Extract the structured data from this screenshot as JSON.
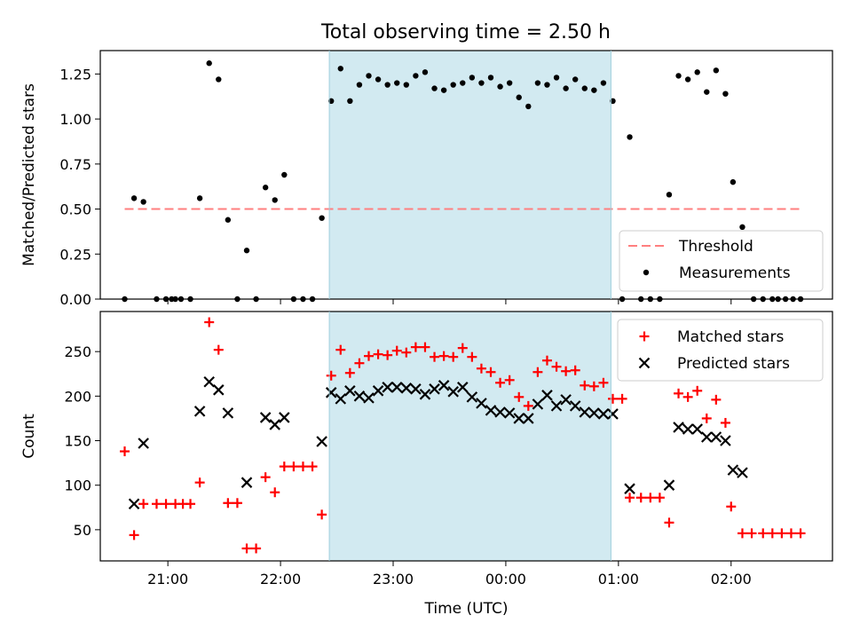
{
  "title": "Total observing time = 2.50 h",
  "chart_data": [
    {
      "type": "scatter",
      "panel": "top",
      "ylabel": "Matched/Predicted stars",
      "xlabel": "",
      "xlim": [
        "20:24",
        "02:54"
      ],
      "ylim": [
        0,
        1.38
      ],
      "yticks": [
        "0.00",
        "0.25",
        "0.50",
        "0.75",
        "1.00",
        "1.25"
      ],
      "threshold": {
        "name": "Threshold",
        "value": 0.5,
        "x_start": "20:37",
        "x_end": "02:37",
        "color": "#ff7f7f",
        "style": "dashed"
      },
      "shaded_region": {
        "x_start": "22:26",
        "x_end": "00:56",
        "color": "#add8e6"
      },
      "legend": {
        "placement": "lower right",
        "entries": [
          "Threshold",
          "Measurements"
        ]
      },
      "series": [
        {
          "name": "Measurements",
          "marker": "dot",
          "color": "#000000",
          "points": [
            [
              "20:37",
              0.0
            ],
            [
              "20:42",
              0.56
            ],
            [
              "20:47",
              0.54
            ],
            [
              "20:54",
              0.0
            ],
            [
              "20:59",
              0.0
            ],
            [
              "21:02",
              0.0
            ],
            [
              "21:04",
              0.0
            ],
            [
              "21:07",
              0.0
            ],
            [
              "21:12",
              0.0
            ],
            [
              "21:17",
              0.56
            ],
            [
              "21:22",
              1.31
            ],
            [
              "21:27",
              1.22
            ],
            [
              "21:32",
              0.44
            ],
            [
              "21:37",
              0.0
            ],
            [
              "21:42",
              0.27
            ],
            [
              "21:47",
              0.0
            ],
            [
              "21:52",
              0.62
            ],
            [
              "21:57",
              0.55
            ],
            [
              "22:02",
              0.69
            ],
            [
              "22:07",
              0.0
            ],
            [
              "22:12",
              0.0
            ],
            [
              "22:17",
              0.0
            ],
            [
              "22:22",
              0.45
            ],
            [
              "22:27",
              1.1
            ],
            [
              "22:32",
              1.28
            ],
            [
              "22:37",
              1.1
            ],
            [
              "22:42",
              1.19
            ],
            [
              "22:47",
              1.24
            ],
            [
              "22:52",
              1.22
            ],
            [
              "22:57",
              1.19
            ],
            [
              "23:02",
              1.2
            ],
            [
              "23:07",
              1.19
            ],
            [
              "23:12",
              1.24
            ],
            [
              "23:17",
              1.26
            ],
            [
              "23:22",
              1.17
            ],
            [
              "23:27",
              1.16
            ],
            [
              "23:32",
              1.19
            ],
            [
              "23:37",
              1.2
            ],
            [
              "23:42",
              1.23
            ],
            [
              "23:47",
              1.2
            ],
            [
              "23:52",
              1.23
            ],
            [
              "23:57",
              1.18
            ],
            [
              "00:02",
              1.2
            ],
            [
              "00:07",
              1.12
            ],
            [
              "00:12",
              1.07
            ],
            [
              "00:17",
              1.2
            ],
            [
              "00:22",
              1.19
            ],
            [
              "00:27",
              1.23
            ],
            [
              "00:32",
              1.17
            ],
            [
              "00:37",
              1.22
            ],
            [
              "00:42",
              1.17
            ],
            [
              "00:47",
              1.16
            ],
            [
              "00:52",
              1.2
            ],
            [
              "00:57",
              1.1
            ],
            [
              "01:02",
              0.0
            ],
            [
              "01:06",
              0.9
            ],
            [
              "01:12",
              0.0
            ],
            [
              "01:17",
              0.0
            ],
            [
              "01:22",
              0.0
            ],
            [
              "01:27",
              0.58
            ],
            [
              "01:32",
              1.24
            ],
            [
              "01:37",
              1.22
            ],
            [
              "01:42",
              1.26
            ],
            [
              "01:47",
              1.15
            ],
            [
              "01:52",
              1.27
            ],
            [
              "01:57",
              1.14
            ],
            [
              "02:01",
              0.65
            ],
            [
              "02:06",
              0.4
            ],
            [
              "02:12",
              0.0
            ],
            [
              "02:17",
              0.0
            ],
            [
              "02:22",
              0.0
            ],
            [
              "02:25",
              0.0
            ],
            [
              "02:29",
              0.0
            ],
            [
              "02:33",
              0.0
            ],
            [
              "02:37",
              0.0
            ]
          ]
        }
      ]
    },
    {
      "type": "scatter",
      "panel": "bottom",
      "ylabel": "Count",
      "xlabel": "Time (UTC)",
      "xlim": [
        "20:24",
        "02:54"
      ],
      "ylim": [
        15,
        295
      ],
      "yticks": [
        "50",
        "100",
        "150",
        "200",
        "250"
      ],
      "xticks": [
        "21:00",
        "22:00",
        "23:00",
        "00:00",
        "01:00",
        "02:00"
      ],
      "shaded_region": {
        "x_start": "22:26",
        "x_end": "00:56",
        "color": "#add8e6"
      },
      "legend": {
        "placement": "upper right",
        "entries": [
          "Matched stars",
          "Predicted stars"
        ]
      },
      "series": [
        {
          "name": "Matched stars",
          "marker": "plus",
          "color": "#ff0000",
          "points": [
            [
              "20:37",
              138
            ],
            [
              "20:42",
              44
            ],
            [
              "20:47",
              79
            ],
            [
              "20:54",
              79
            ],
            [
              "20:59",
              79
            ],
            [
              "21:04",
              79
            ],
            [
              "21:08",
              79
            ],
            [
              "21:12",
              79
            ],
            [
              "21:17",
              103
            ],
            [
              "21:22",
              283
            ],
            [
              "21:27",
              252
            ],
            [
              "21:32",
              80
            ],
            [
              "21:37",
              80
            ],
            [
              "21:42",
              29
            ],
            [
              "21:47",
              29
            ],
            [
              "21:52",
              109
            ],
            [
              "21:57",
              92
            ],
            [
              "22:02",
              121
            ],
            [
              "22:07",
              121
            ],
            [
              "22:12",
              121
            ],
            [
              "22:17",
              121
            ],
            [
              "22:22",
              67
            ],
            [
              "22:27",
              223
            ],
            [
              "22:32",
              252
            ],
            [
              "22:37",
              226
            ],
            [
              "22:42",
              237
            ],
            [
              "22:47",
              245
            ],
            [
              "22:52",
              247
            ],
            [
              "22:57",
              246
            ],
            [
              "23:02",
              251
            ],
            [
              "23:07",
              249
            ],
            [
              "23:12",
              255
            ],
            [
              "23:17",
              255
            ],
            [
              "23:22",
              244
            ],
            [
              "23:27",
              245
            ],
            [
              "23:32",
              244
            ],
            [
              "23:37",
              254
            ],
            [
              "23:42",
              244
            ],
            [
              "23:47",
              231
            ],
            [
              "23:52",
              227
            ],
            [
              "23:57",
              215
            ],
            [
              "00:02",
              218
            ],
            [
              "00:07",
              199
            ],
            [
              "00:12",
              189
            ],
            [
              "00:17",
              227
            ],
            [
              "00:22",
              240
            ],
            [
              "00:27",
              233
            ],
            [
              "00:32",
              228
            ],
            [
              "00:37",
              229
            ],
            [
              "00:42",
              212
            ],
            [
              "00:47",
              211
            ],
            [
              "00:52",
              215
            ],
            [
              "00:57",
              197
            ],
            [
              "01:02",
              197
            ],
            [
              "01:06",
              86
            ],
            [
              "01:12",
              86
            ],
            [
              "01:17",
              86
            ],
            [
              "01:22",
              86
            ],
            [
              "01:27",
              58
            ],
            [
              "01:32",
              203
            ],
            [
              "01:37",
              199
            ],
            [
              "01:42",
              206
            ],
            [
              "01:47",
              175
            ],
            [
              "01:52",
              196
            ],
            [
              "01:57",
              170
            ],
            [
              "02:00",
              76
            ],
            [
              "02:06",
              46
            ],
            [
              "02:11",
              46
            ],
            [
              "02:17",
              46
            ],
            [
              "02:22",
              46
            ],
            [
              "02:27",
              46
            ],
            [
              "02:32",
              46
            ],
            [
              "02:37",
              46
            ]
          ]
        },
        {
          "name": "Predicted stars",
          "marker": "x",
          "color": "#000000",
          "points": [
            [
              "20:42",
              79
            ],
            [
              "20:47",
              147
            ],
            [
              "21:17",
              183
            ],
            [
              "21:22",
              216
            ],
            [
              "21:27",
              207
            ],
            [
              "21:32",
              181
            ],
            [
              "21:42",
              103
            ],
            [
              "21:52",
              176
            ],
            [
              "21:57",
              168
            ],
            [
              "22:02",
              176
            ],
            [
              "22:22",
              149
            ],
            [
              "22:27",
              204
            ],
            [
              "22:32",
              197
            ],
            [
              "22:37",
              206
            ],
            [
              "22:42",
              200
            ],
            [
              "22:47",
              198
            ],
            [
              "22:52",
              206
            ],
            [
              "22:57",
              210
            ],
            [
              "23:02",
              210
            ],
            [
              "23:07",
              209
            ],
            [
              "23:12",
              208
            ],
            [
              "23:17",
              202
            ],
            [
              "23:22",
              208
            ],
            [
              "23:27",
              212
            ],
            [
              "23:32",
              205
            ],
            [
              "23:37",
              210
            ],
            [
              "23:42",
              199
            ],
            [
              "23:47",
              192
            ],
            [
              "23:52",
              184
            ],
            [
              "23:57",
              182
            ],
            [
              "00:02",
              181
            ],
            [
              "00:07",
              175
            ],
            [
              "00:12",
              175
            ],
            [
              "00:17",
              191
            ],
            [
              "00:22",
              201
            ],
            [
              "00:27",
              189
            ],
            [
              "00:32",
              196
            ],
            [
              "00:37",
              189
            ],
            [
              "00:42",
              182
            ],
            [
              "00:47",
              181
            ],
            [
              "00:52",
              180
            ],
            [
              "00:57",
              180
            ],
            [
              "01:06",
              96
            ],
            [
              "01:27",
              100
            ],
            [
              "01:32",
              165
            ],
            [
              "01:37",
              163
            ],
            [
              "01:42",
              163
            ],
            [
              "01:47",
              154
            ],
            [
              "01:52",
              154
            ],
            [
              "01:57",
              150
            ],
            [
              "02:01",
              117
            ],
            [
              "02:06",
              114
            ]
          ]
        }
      ]
    }
  ]
}
